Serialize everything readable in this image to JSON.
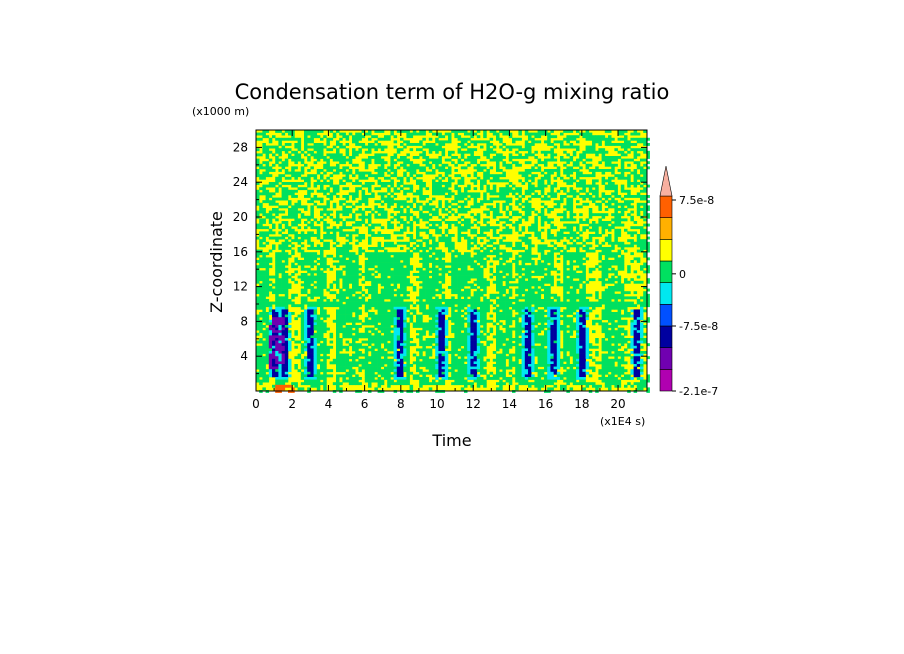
{
  "chart_data": {
    "type": "heatmap",
    "title": "Condensation term of H2O-g mixing ratio",
    "xlabel": "Time",
    "ylabel": "Z-coordinate",
    "x_scale_label": "(x1E4 s)",
    "y_scale_label": "(x1000 m)",
    "xlim": [
      0,
      21.6
    ],
    "ylim": [
      0,
      30
    ],
    "x_ticks": [
      "0",
      "2",
      "4",
      "6",
      "8",
      "10",
      "12",
      "14",
      "16",
      "18",
      "20"
    ],
    "y_ticks": [
      "4",
      "8",
      "12",
      "16",
      "20",
      "24",
      "28"
    ],
    "colorbar": {
      "tick_labels": [
        "7.5e-8",
        "0",
        "-7.5e-8",
        "-2.1e-7"
      ],
      "colors": [
        "#b000b0",
        "#7000b0",
        "#0000a0",
        "#0050ff",
        "#00e8f0",
        "#00e060",
        "#ffff00",
        "#ffb000",
        "#ff6000",
        "#f8b0a0"
      ]
    },
    "regions": [
      {
        "band": "16-30",
        "pattern": "mixed small-scale green and yellow (near-zero values)"
      },
      {
        "band": "0-16",
        "pattern": "yellow background with vertical green/cyan streaks"
      },
      {
        "band": "1-9",
        "pattern": "isolated blue/purple cores near x = 1, 3, 8, 12, 15, 18"
      },
      {
        "band": "0-1",
        "pattern": "orange patch near x = 1.5"
      }
    ]
  }
}
